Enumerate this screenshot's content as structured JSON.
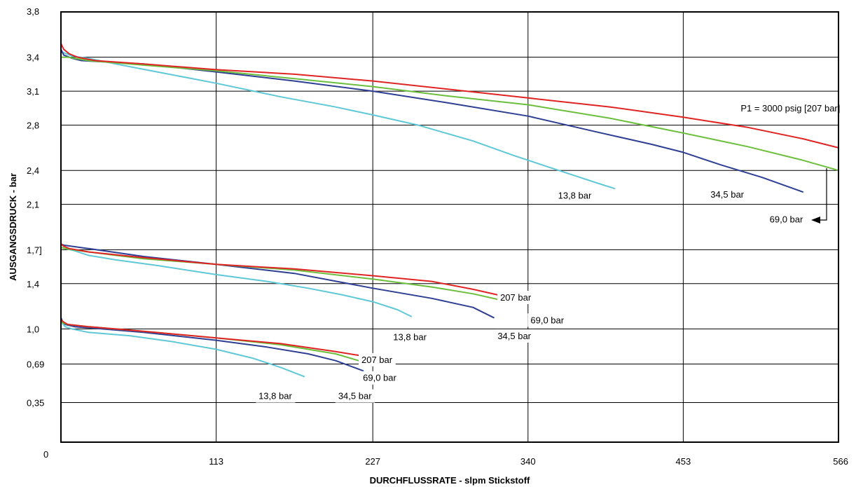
{
  "chart_data": {
    "type": "line",
    "xlabel": "DURCHFLUSSRATE - slpm Stickstoff",
    "ylabel": "AUSGANGSDRUCK - bar",
    "xlim": [
      0,
      566
    ],
    "ylim": [
      0,
      3.8
    ],
    "x_ticks": [
      {
        "value": 0,
        "label": "0"
      },
      {
        "value": 113,
        "label": "113"
      },
      {
        "value": 227,
        "label": "227"
      },
      {
        "value": 340,
        "label": "340"
      },
      {
        "value": 453,
        "label": "453"
      },
      {
        "value": 566,
        "label": "566"
      }
    ],
    "y_ticks": [
      {
        "value": 0.35,
        "label": "0,35"
      },
      {
        "value": 0.69,
        "label": "0,69"
      },
      {
        "value": 1.0,
        "label": "1,0"
      },
      {
        "value": 1.4,
        "label": "1,4"
      },
      {
        "value": 1.7,
        "label": "1,7]"
      },
      {
        "value": 2.1,
        "label": "2,1"
      },
      {
        "value": 2.4,
        "label": "2,4"
      },
      {
        "value": 2.8,
        "label": "2,8"
      },
      {
        "value": 3.1,
        "label": "3,1"
      },
      {
        "value": 3.4,
        "label": "3,4"
      },
      {
        "value": 3.8,
        "label": "3,8"
      }
    ],
    "grid": true,
    "colors": {
      "13,8 bar": "#5fc8d6",
      "34,5 bar": "#2e3f94",
      "69,0 bar": "#6cbf3c",
      "207 bar": "#e02424"
    },
    "groups": [
      {
        "series": [
          {
            "name": "13,8 bar",
            "x": [
              0,
              2,
              8,
              20,
              40,
              70,
              113,
              160,
              200,
              227,
              260,
              300,
              330,
              355,
              375,
              390,
              403
            ],
            "y": [
              3.45,
              3.44,
              3.41,
              3.39,
              3.34,
              3.27,
              3.17,
              3.05,
              2.96,
              2.89,
              2.8,
              2.66,
              2.53,
              2.43,
              2.35,
              2.29,
              2.24
            ]
          },
          {
            "name": "34,5 bar",
            "x": [
              0,
              2,
              8,
              15,
              30,
              60,
              113,
              170,
              227,
              280,
              340,
              390,
              430,
              453,
              480,
              510,
              540
            ],
            "y": [
              3.47,
              3.42,
              3.39,
              3.37,
              3.36,
              3.34,
              3.27,
              3.19,
              3.1,
              3.0,
              2.88,
              2.74,
              2.63,
              2.56,
              2.45,
              2.34,
              2.21
            ]
          },
          {
            "name": "69,0 bar",
            "x": [
              0,
              5,
              20,
              60,
              113,
              170,
              227,
              280,
              340,
              400,
              453,
              500,
              540,
              566
            ],
            "y": [
              3.4,
              3.4,
              3.37,
              3.33,
              3.28,
              3.21,
              3.14,
              3.06,
              2.98,
              2.86,
              2.73,
              2.61,
              2.49,
              2.4
            ]
          },
          {
            "name": "207 bar",
            "x": [
              0,
              2,
              6,
              12,
              25,
              60,
              113,
              170,
              227,
              280,
              340,
              400,
              453,
              500,
              540,
              566
            ],
            "y": [
              3.52,
              3.47,
              3.43,
              3.4,
              3.37,
              3.34,
              3.29,
              3.25,
              3.19,
              3.12,
              3.04,
              2.96,
              2.87,
              2.78,
              2.68,
              2.6
            ]
          }
        ]
      },
      {
        "series": [
          {
            "name": "13,8 bar",
            "x": [
              0,
              3,
              10,
              20,
              40,
              70,
              113,
              150,
              180,
              205,
              227,
              245,
              255
            ],
            "y": [
              1.72,
              1.71,
              1.69,
              1.65,
              1.61,
              1.56,
              1.48,
              1.42,
              1.36,
              1.3,
              1.24,
              1.17,
              1.11
            ]
          },
          {
            "name": "34,5 bar",
            "x": [
              0,
              2,
              20,
              60,
              113,
              170,
              227,
              270,
              300,
              315
            ],
            "y": [
              1.75,
              1.74,
              1.71,
              1.64,
              1.57,
              1.49,
              1.36,
              1.27,
              1.19,
              1.1
            ]
          },
          {
            "name": "69,0 bar",
            "x": [
              0,
              3,
              20,
              60,
              113,
              170,
              227,
              270,
              300,
              322
            ],
            "y": [
              1.72,
              1.71,
              1.68,
              1.62,
              1.57,
              1.52,
              1.44,
              1.37,
              1.31,
              1.25
            ]
          },
          {
            "name": "207 bar",
            "x": [
              0,
              2,
              6,
              20,
              60,
              113,
              170,
              227,
              270,
              300,
              322
            ],
            "y": [
              1.75,
              1.73,
              1.71,
              1.68,
              1.63,
              1.57,
              1.53,
              1.47,
              1.42,
              1.35,
              1.29
            ]
          }
        ]
      },
      {
        "series": [
          {
            "name": "13,8 bar",
            "x": [
              0,
              1,
              3,
              8,
              20,
              50,
              80,
              113,
              140,
              160,
              177
            ],
            "y": [
              1.08,
              1.05,
              1.02,
              1.0,
              0.97,
              0.94,
              0.89,
              0.82,
              0.74,
              0.66,
              0.58
            ]
          },
          {
            "name": "34,5 bar",
            "x": [
              0,
              1,
              3,
              10,
              30,
              60,
              113,
              150,
              180,
              200,
              220
            ],
            "y": [
              1.1,
              1.07,
              1.04,
              1.02,
              1.0,
              0.97,
              0.9,
              0.84,
              0.78,
              0.72,
              0.63
            ]
          },
          {
            "name": "69,0 bar",
            "x": [
              0,
              2,
              5,
              20,
              60,
              113,
              160,
              200,
              225
            ],
            "y": [
              1.06,
              1.05,
              1.04,
              1.02,
              0.98,
              0.92,
              0.86,
              0.78,
              0.69
            ]
          },
          {
            "name": "207 bar",
            "x": [
              0,
              2,
              5,
              20,
              60,
              113,
              160,
              200,
              230
            ],
            "y": [
              1.08,
              1.06,
              1.04,
              1.02,
              0.98,
              0.92,
              0.87,
              0.8,
              0.74
            ]
          }
        ]
      }
    ],
    "annotations": [
      {
        "text": "P1 = 3000 psig [207 bar]",
        "x": 531,
        "y": 2.92
      },
      {
        "text": "13,8 bar",
        "x": 374,
        "y": 2.15
      },
      {
        "text": "34,5 bar",
        "x": 485,
        "y": 2.16
      },
      {
        "text": "69,0 bar",
        "x": 528,
        "y": 1.94
      },
      {
        "text": "207 bar",
        "x": 331,
        "y": 1.25
      },
      {
        "text": "69,0 bar",
        "x": 354,
        "y": 1.05
      },
      {
        "text": "13,8 bar",
        "x": 254,
        "y": 0.9
      },
      {
        "text": "34,5 bar",
        "x": 330,
        "y": 0.91
      },
      {
        "text": "207 bar",
        "x": 230,
        "y": 0.7
      },
      {
        "text": "69,0 bar",
        "x": 232,
        "y": 0.54
      },
      {
        "text": "13,8 bar",
        "x": 156,
        "y": 0.38
      },
      {
        "text": "34,5 bar",
        "x": 214,
        "y": 0.38
      }
    ]
  }
}
